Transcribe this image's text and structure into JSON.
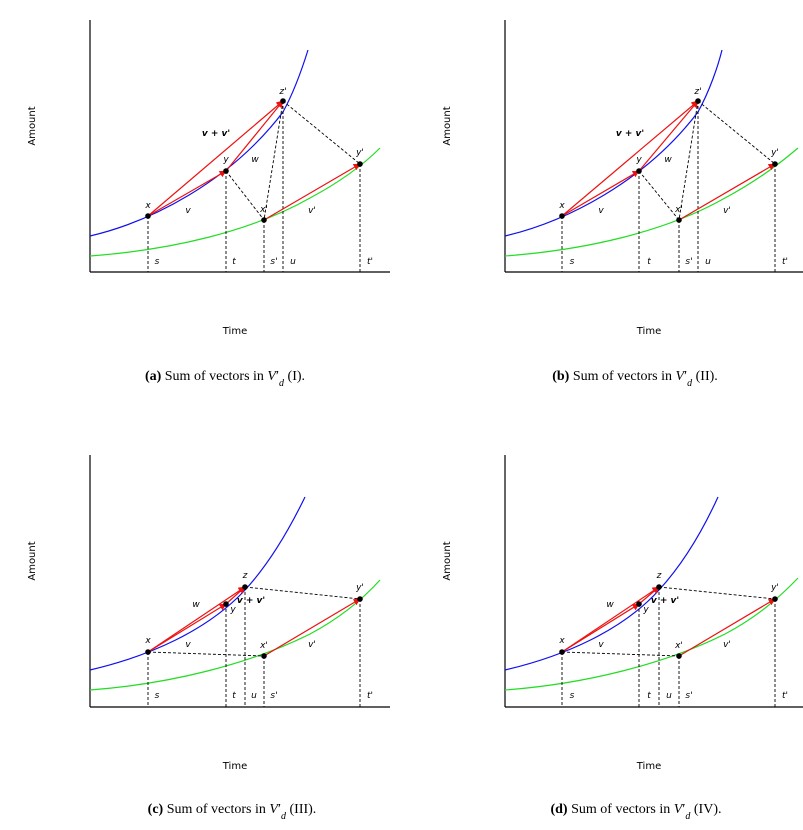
{
  "colors": {
    "curve_primary": "#1010ee",
    "curve_secondary": "#22dd22",
    "arrow": "#ee1111",
    "axis": "#000000",
    "guide": "#000000"
  },
  "axes": {
    "xlabel": "Time",
    "ylabel": "Amount"
  },
  "panels": [
    {
      "id": "a",
      "caption": {
        "tag": "(a)",
        "text": "Sum of vectors in",
        "math_base": "V",
        "math_prime": "′",
        "math_sub": "d",
        "suffix": "(I)."
      },
      "labels": {
        "x": "x",
        "y": "y",
        "z": "z'",
        "xp": "x'",
        "yp": "y'",
        "v": "v",
        "w": "w",
        "vp": "v'",
        "sum": "v + v'",
        "s": "s",
        "t": "t",
        "u": "u",
        "sp": "s'",
        "tp": "t'"
      }
    },
    {
      "id": "b",
      "caption": {
        "tag": "(b)",
        "text": "Sum of vectors in",
        "math_base": "V",
        "math_prime": "′",
        "math_sub": "d",
        "suffix": "(II)."
      },
      "labels": {
        "x": "x",
        "y": "y",
        "z": "z'",
        "xp": "x'",
        "yp": "y'",
        "v": "v",
        "w": "w",
        "vp": "v'",
        "sum": "v + v'",
        "s": "s",
        "t": "t",
        "u": "u",
        "sp": "s'",
        "tp": "t'"
      }
    },
    {
      "id": "c",
      "caption": {
        "tag": "(c)",
        "text": "Sum of vectors in",
        "math_base": "V",
        "math_prime": "′",
        "math_sub": "d",
        "suffix": "(III)."
      },
      "labels": {
        "x": "x",
        "y": "y",
        "z": "z",
        "xp": "x'",
        "yp": "y'",
        "v": "v",
        "w": "w",
        "vp": "v'",
        "sum": "v + v'",
        "s": "s",
        "t": "t",
        "u": "u",
        "sp": "s'",
        "tp": "t'"
      }
    },
    {
      "id": "d",
      "caption": {
        "tag": "(d)",
        "text": "Sum of vectors in",
        "math_base": "V",
        "math_prime": "′",
        "math_sub": "d",
        "suffix": "(IV)."
      },
      "labels": {
        "x": "x",
        "y": "y",
        "z": "z",
        "xp": "x'",
        "yp": "y'",
        "v": "v",
        "w": "w",
        "vp": "v'",
        "sum": "v + v'",
        "s": "s",
        "t": "t",
        "u": "u",
        "sp": "s'",
        "tp": "t'"
      }
    }
  ]
}
